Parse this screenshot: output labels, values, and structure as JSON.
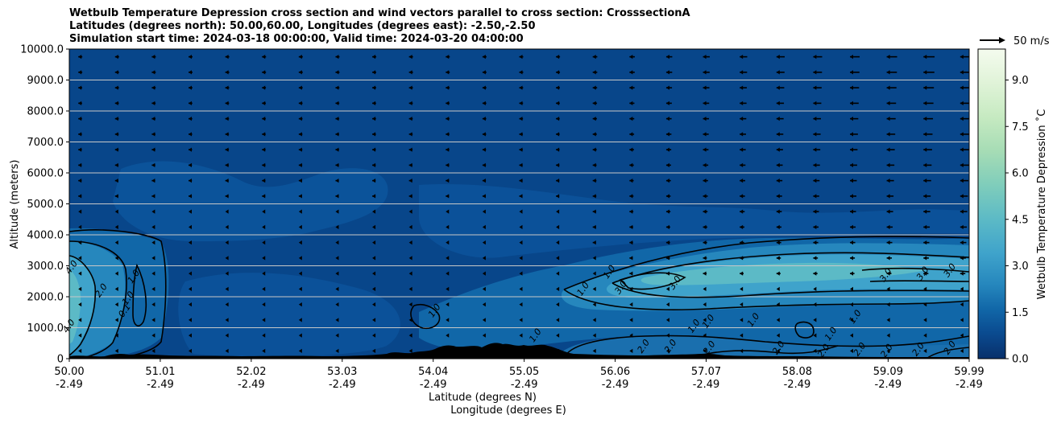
{
  "chart_data": {
    "type": "heatmap",
    "title_lines": [
      "Wetbulb Temperature Depression cross section and wind vectors parallel to cross section: CrosssectionA",
      "Latitudes (degrees north): 50.00,60.00, Longitudes (degrees east): -2.50,-2.50",
      "Simulation start time: 2024-03-18 00:00:00, Valid time: 2024-03-20 04:00:00"
    ],
    "xlabel_lat": "Latitude (degrees N)",
    "xlabel_lon": "Longitude (degrees E)",
    "ylabel": "Altitude (meters)",
    "xlim": [
      50.0,
      59.99
    ],
    "ylim": [
      0,
      10000
    ],
    "x_ticks": [
      {
        "lat": "50.00",
        "lon": "-2.49",
        "v": 50.0
      },
      {
        "lat": "51.01",
        "lon": "-2.49",
        "v": 51.01
      },
      {
        "lat": "52.02",
        "lon": "-2.49",
        "v": 52.02
      },
      {
        "lat": "53.03",
        "lon": "-2.49",
        "v": 53.03
      },
      {
        "lat": "54.04",
        "lon": "-2.49",
        "v": 54.04
      },
      {
        "lat": "55.05",
        "lon": "-2.49",
        "v": 55.05
      },
      {
        "lat": "56.06",
        "lon": "-2.49",
        "v": 56.06
      },
      {
        "lat": "57.07",
        "lon": "-2.49",
        "v": 57.07
      },
      {
        "lat": "58.08",
        "lon": "-2.49",
        "v": 58.08
      },
      {
        "lat": "59.09",
        "lon": "-2.49",
        "v": 59.09
      },
      {
        "lat": "59.99",
        "lon": "-2.49",
        "v": 59.99
      }
    ],
    "y_ticks": [
      {
        "label": "0",
        "v": 0
      },
      {
        "label": "1000.0",
        "v": 1000
      },
      {
        "label": "2000.0",
        "v": 2000
      },
      {
        "label": "3000.0",
        "v": 3000
      },
      {
        "label": "4000.0",
        "v": 4000
      },
      {
        "label": "5000.0",
        "v": 5000
      },
      {
        "label": "6000.0",
        "v": 6000
      },
      {
        "label": "7000.0",
        "v": 7000
      },
      {
        "label": "8000.0",
        "v": 8000
      },
      {
        "label": "9000.0",
        "v": 9000
      },
      {
        "label": "10000.0",
        "v": 10000
      }
    ],
    "grid": "horizontal",
    "colorbar": {
      "label": "Wetbulb Temperature Depression ˚C",
      "range": [
        0.0,
        10.0
      ],
      "ticks": [
        "0.0",
        "1.5",
        "3.0",
        "4.5",
        "6.0",
        "7.5",
        "9.0"
      ],
      "tick_values": [
        0.0,
        1.5,
        3.0,
        4.5,
        6.0,
        7.5,
        9.0
      ],
      "colormap": "GnBu_r",
      "levels": 20
    },
    "wind_reference": {
      "label": "50 m/s",
      "speed": 50
    },
    "wind_direction": "toward lower latitude (leftward)",
    "contour_labels": [
      {
        "text": "4.0",
        "lat": 50.05,
        "alt": 2900
      },
      {
        "text": "4.0",
        "lat": 50.02,
        "alt": 1000
      },
      {
        "text": "2.0",
        "lat": 50.38,
        "alt": 2150
      },
      {
        "text": "1.0",
        "lat": 50.74,
        "alt": 2600
      },
      {
        "text": "1.0",
        "lat": 50.68,
        "alt": 1900
      },
      {
        "text": "0.1",
        "lat": 50.64,
        "alt": 1500
      },
      {
        "text": "1.0",
        "lat": 54.08,
        "alt": 1500
      },
      {
        "text": "1.0",
        "lat": 55.2,
        "alt": 700
      },
      {
        "text": "1.0",
        "lat": 55.73,
        "alt": 2200
      },
      {
        "text": "1.0",
        "lat": 56.02,
        "alt": 2750
      },
      {
        "text": "3.0",
        "lat": 56.15,
        "alt": 2250
      },
      {
        "text": "3.0",
        "lat": 56.75,
        "alt": 2400
      },
      {
        "text": "1.0",
        "lat": 56.96,
        "alt": 1000
      },
      {
        "text": "1.0",
        "lat": 57.12,
        "alt": 1150
      },
      {
        "text": "2.0",
        "lat": 57.13,
        "alt": 300
      },
      {
        "text": "1.0",
        "lat": 57.62,
        "alt": 1200
      },
      {
        "text": "1.0",
        "lat": 58.48,
        "alt": 750
      },
      {
        "text": "1.0",
        "lat": 58.75,
        "alt": 1300
      },
      {
        "text": "3.0",
        "lat": 59.09,
        "alt": 2650
      },
      {
        "text": "3.0",
        "lat": 59.5,
        "alt": 2700
      },
      {
        "text": "3.0",
        "lat": 59.8,
        "alt": 2800
      },
      {
        "text": "2.0",
        "lat": 56.4,
        "alt": 350
      },
      {
        "text": "2.0",
        "lat": 56.7,
        "alt": 350
      },
      {
        "text": "2.0",
        "lat": 57.9,
        "alt": 300
      },
      {
        "text": "2.0",
        "lat": 58.4,
        "alt": 200
      },
      {
        "text": "2.0",
        "lat": 58.8,
        "alt": 250
      },
      {
        "text": "2.0",
        "lat": 59.1,
        "alt": 200
      },
      {
        "text": "2.0",
        "lat": 59.45,
        "alt": 250
      },
      {
        "text": "2.0",
        "lat": 59.8,
        "alt": 300
      }
    ]
  }
}
